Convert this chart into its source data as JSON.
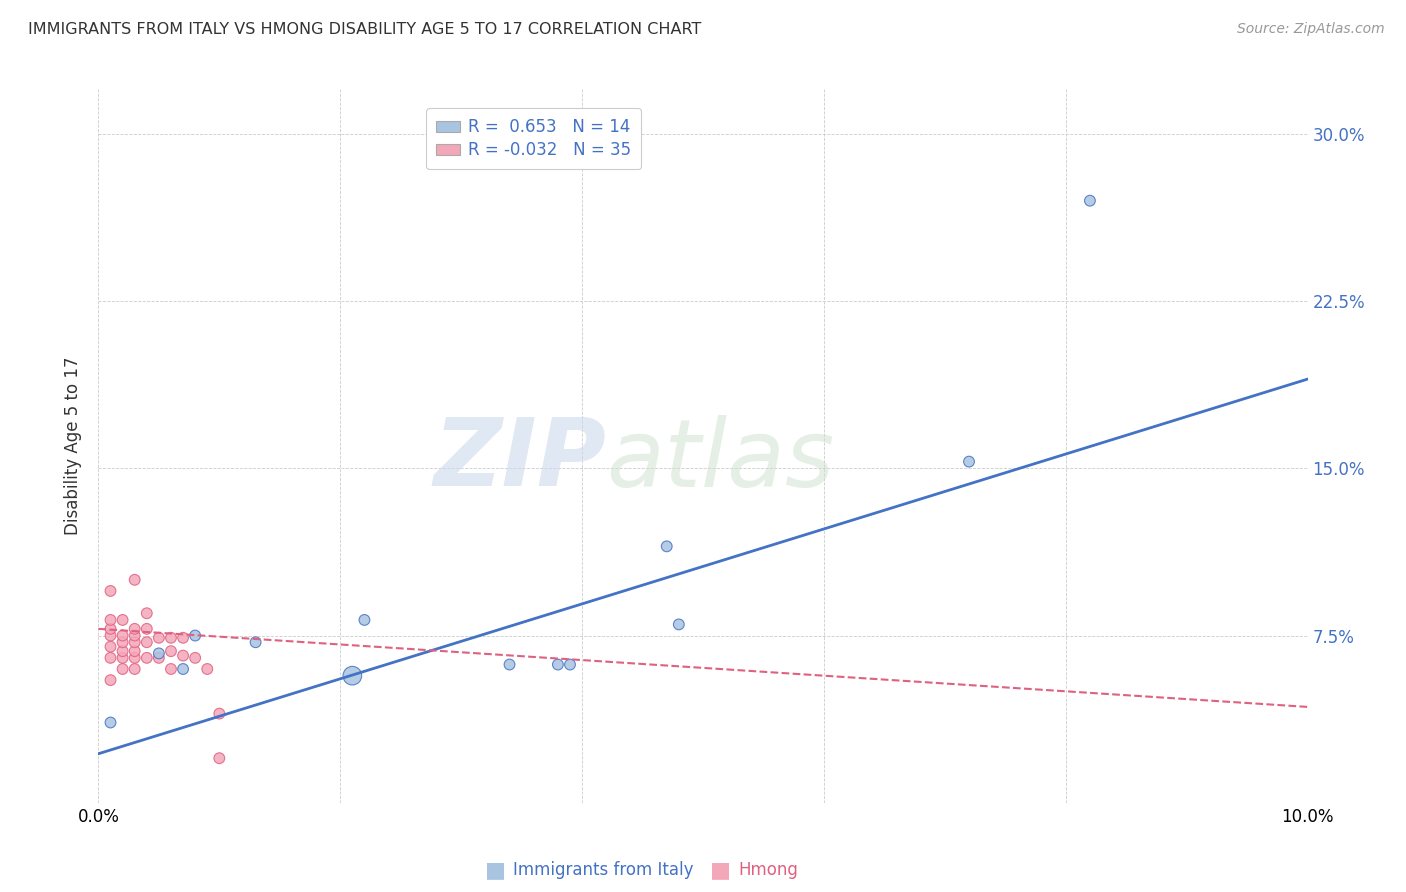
{
  "title": "IMMIGRANTS FROM ITALY VS HMONG DISABILITY AGE 5 TO 17 CORRELATION CHART",
  "source": "Source: ZipAtlas.com",
  "ylabel": "Disability Age 5 to 17",
  "xlim": [
    0.0,
    0.1
  ],
  "ylim": [
    0.0,
    0.32
  ],
  "italy_r": 0.653,
  "italy_n": 14,
  "hmong_r": -0.032,
  "hmong_n": 35,
  "italy_color": "#a8c4e0",
  "hmong_color": "#f4a7b9",
  "italy_line_color": "#4472C4",
  "hmong_line_color": "#E06080",
  "background_color": "#ffffff",
  "watermark_zip": "ZIP",
  "watermark_atlas": "atlas",
  "italy_points_x": [
    0.001,
    0.005,
    0.007,
    0.008,
    0.013,
    0.021,
    0.022,
    0.034,
    0.038,
    0.039,
    0.047,
    0.048,
    0.072,
    0.082
  ],
  "italy_points_y": [
    0.036,
    0.067,
    0.06,
    0.075,
    0.072,
    0.057,
    0.082,
    0.062,
    0.062,
    0.062,
    0.115,
    0.08,
    0.153,
    0.27
  ],
  "hmong_points_x": [
    0.001,
    0.001,
    0.001,
    0.001,
    0.001,
    0.001,
    0.001,
    0.002,
    0.002,
    0.002,
    0.002,
    0.002,
    0.002,
    0.003,
    0.003,
    0.003,
    0.003,
    0.003,
    0.003,
    0.003,
    0.004,
    0.004,
    0.004,
    0.004,
    0.005,
    0.005,
    0.006,
    0.006,
    0.006,
    0.007,
    0.007,
    0.008,
    0.009,
    0.01,
    0.01
  ],
  "hmong_points_y": [
    0.055,
    0.065,
    0.07,
    0.075,
    0.078,
    0.082,
    0.095,
    0.06,
    0.065,
    0.068,
    0.072,
    0.075,
    0.082,
    0.06,
    0.065,
    0.068,
    0.072,
    0.075,
    0.078,
    0.1,
    0.065,
    0.072,
    0.078,
    0.085,
    0.065,
    0.074,
    0.06,
    0.068,
    0.074,
    0.066,
    0.074,
    0.065,
    0.06,
    0.04,
    0.02
  ],
  "italy_sizes": [
    60,
    60,
    60,
    60,
    60,
    180,
    60,
    60,
    60,
    60,
    60,
    60,
    60,
    60
  ],
  "hmong_sizes": [
    60,
    60,
    60,
    60,
    60,
    60,
    60,
    60,
    60,
    60,
    60,
    60,
    60,
    60,
    60,
    60,
    60,
    60,
    60,
    60,
    60,
    60,
    60,
    60,
    60,
    60,
    60,
    60,
    60,
    60,
    60,
    60,
    60,
    60,
    60
  ],
  "ytick_positions": [
    0.0,
    0.075,
    0.15,
    0.225,
    0.3
  ],
  "ytick_labels": [
    "",
    "7.5%",
    "15.0%",
    "22.5%",
    "30.0%"
  ],
  "xtick_positions": [
    0.0,
    0.02,
    0.04,
    0.06,
    0.08,
    0.1
  ],
  "xtick_labels": [
    "0.0%",
    "",
    "",
    "",
    "",
    "10.0%"
  ],
  "bottom_legend_italy": "Immigrants from Italy",
  "bottom_legend_hmong": "Hmong",
  "italy_line_x0": 0.0,
  "italy_line_y0": 0.022,
  "italy_line_x1": 0.1,
  "italy_line_y1": 0.19,
  "hmong_line_x0": 0.0,
  "hmong_line_y0": 0.078,
  "hmong_line_x1": 0.1,
  "hmong_line_y1": 0.043
}
